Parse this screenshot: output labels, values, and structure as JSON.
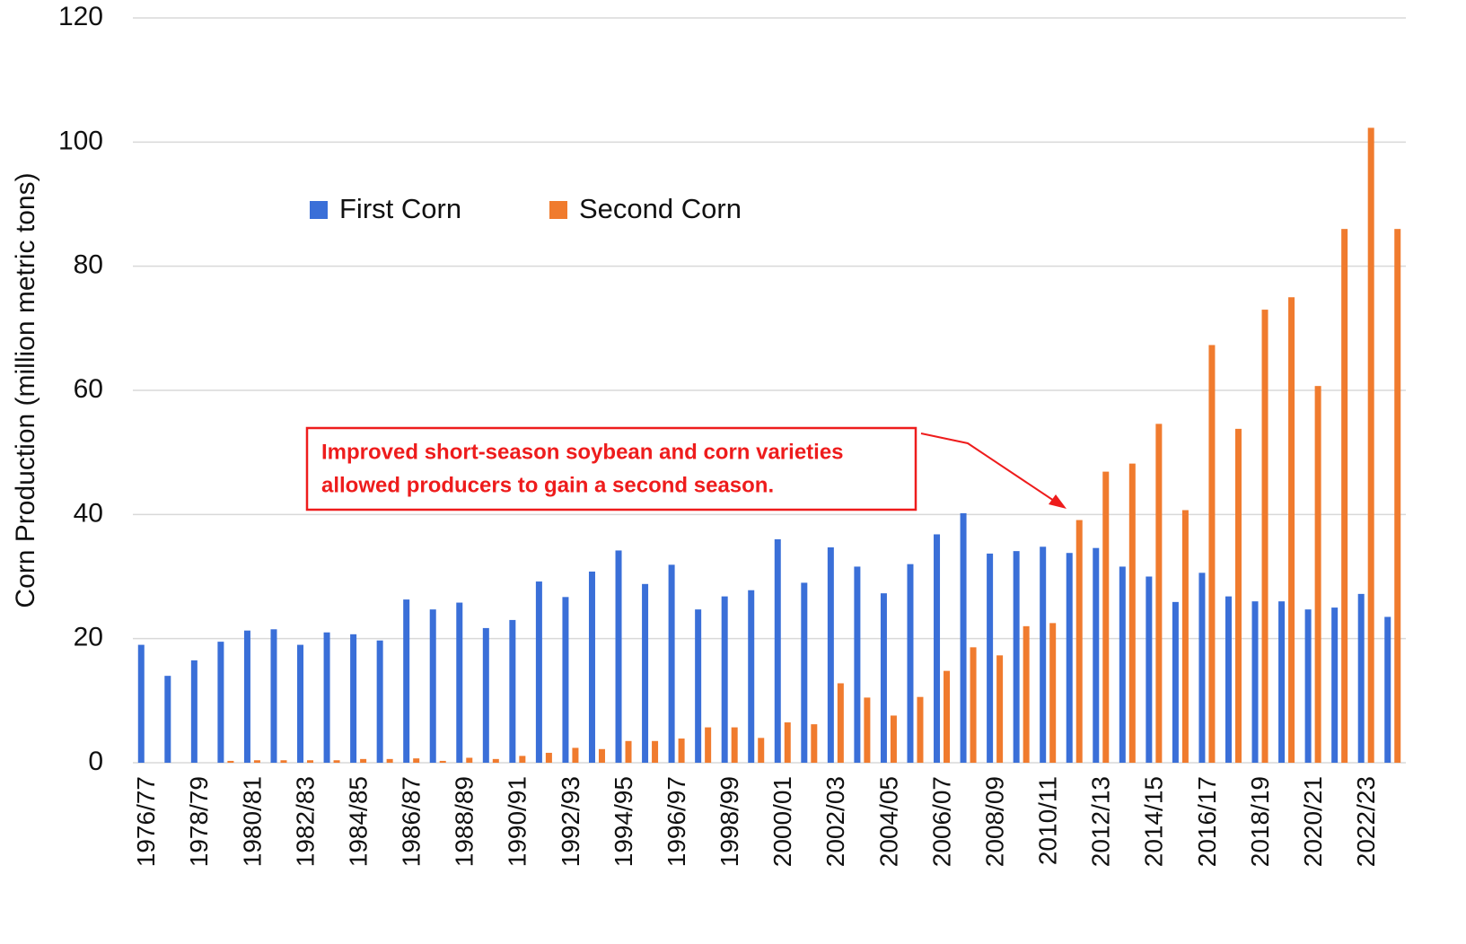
{
  "chart_data": {
    "type": "bar",
    "y_label": "Corn Production (million metric tons)",
    "annotation": [
      "Improved short-season soybean and corn varieties",
      "allowed producers to gain a second season."
    ],
    "categories": [
      "1976/77",
      null,
      "1978/79",
      null,
      "1980/81",
      null,
      "1982/83",
      null,
      "1984/85",
      null,
      "1986/87",
      null,
      "1988/89",
      null,
      "1990/91",
      null,
      "1992/93",
      null,
      "1994/95",
      null,
      "1996/97",
      null,
      "1998/99",
      null,
      "2000/01",
      null,
      "2002/03",
      null,
      "2004/05",
      null,
      "2006/07",
      null,
      "2008/09",
      null,
      "2010/11",
      null,
      "2012/13",
      null,
      "2014/15",
      null,
      "2016/17",
      null,
      "2018/19",
      null,
      "2020/21",
      null,
      "2022/23",
      null
    ],
    "series": [
      {
        "name": "First Corn",
        "color": "#3a6fd8",
        "values": [
          19,
          14,
          16.5,
          19.5,
          21.3,
          21.5,
          19,
          21,
          20.7,
          19.7,
          26.3,
          24.7,
          25.8,
          21.7,
          23,
          29.2,
          26.7,
          30.8,
          34.2,
          28.8,
          31.9,
          24.7,
          26.8,
          27.8,
          36,
          29,
          34.7,
          31.6,
          27.3,
          32,
          36.8,
          40.2,
          33.7,
          34.1,
          34.8,
          33.8,
          34.6,
          31.6,
          30,
          25.9,
          30.6,
          26.8,
          26,
          26,
          24.7,
          25,
          27.2,
          23.5
        ]
      },
      {
        "name": "Second Corn",
        "color": "#f07b2e",
        "values": [
          0,
          0,
          0,
          0.3,
          0.4,
          0.4,
          0.4,
          0.4,
          0.6,
          0.6,
          0.7,
          0.3,
          0.8,
          0.6,
          1.1,
          1.6,
          2.4,
          2.2,
          3.5,
          3.5,
          3.9,
          5.7,
          5.7,
          4,
          6.5,
          6.2,
          12.8,
          10.5,
          7.6,
          10.6,
          14.8,
          18.6,
          17.3,
          22,
          22.5,
          39.1,
          46.9,
          48.2,
          54.6,
          40.7,
          67.3,
          53.8,
          73,
          75,
          60.7,
          86,
          102.3,
          86
        ]
      }
    ],
    "ylim": [
      0,
      120
    ],
    "yticks": [
      0,
      20,
      40,
      60,
      80,
      100,
      120
    ],
    "grid": true
  }
}
